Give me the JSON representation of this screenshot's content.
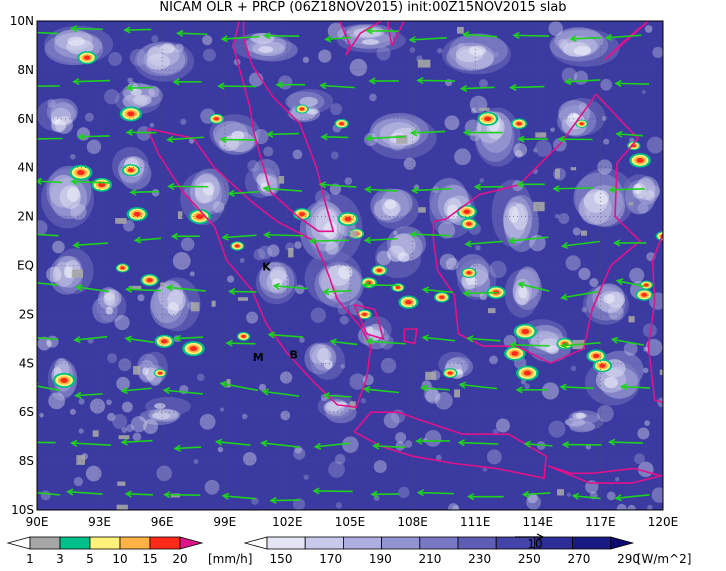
{
  "title": "NICAM OLR + PRCP (06Z18NOV2015) init:00Z15NOV2015 slab",
  "map": {
    "lat_labels": [
      "10N",
      "8N",
      "6N",
      "4N",
      "2N",
      "EQ",
      "2S",
      "4S",
      "6S",
      "8S",
      "10S"
    ],
    "lon_labels": [
      "90E",
      "93E",
      "96E",
      "99E",
      "102E",
      "105E",
      "108E",
      "111E",
      "114E",
      "117E",
      "120E"
    ],
    "lon_range": [
      90,
      120
    ],
    "lat_range": [
      -10,
      10
    ],
    "site_markers": [
      {
        "label": "K",
        "lon": 101.0,
        "lat": -0.2
      },
      {
        "label": "M",
        "lon": 100.6,
        "lat": -3.9
      },
      {
        "label": "B",
        "lon": 102.3,
        "lat": -3.8
      }
    ],
    "vector_ref_label": "10"
  },
  "precip_colorbar": {
    "labels": [
      "1",
      "3",
      "5",
      "10",
      "15",
      "20"
    ],
    "unit": "[mm/h]",
    "colors": [
      "#a6a6a6",
      "#00c08a",
      "#fff27a",
      "#ffb347",
      "#ff2a1a",
      "#e0158a"
    ]
  },
  "olr_colorbar": {
    "labels": [
      "150",
      "170",
      "190",
      "210",
      "230",
      "250",
      "270",
      "290"
    ],
    "unit": "[W/m^2]",
    "colors": [
      "#ffffff",
      "#e4e4f5",
      "#c9c9ec",
      "#aeaee0",
      "#9393d2",
      "#7878c4",
      "#5d5db6",
      "#4343a8",
      "#2d2d98",
      "#1a1a86",
      "#0c0c70"
    ]
  },
  "colors": {
    "coastline": "#e0138c",
    "wind_vector": "#1ed11e",
    "ocean_base": "#3a3aa0"
  }
}
